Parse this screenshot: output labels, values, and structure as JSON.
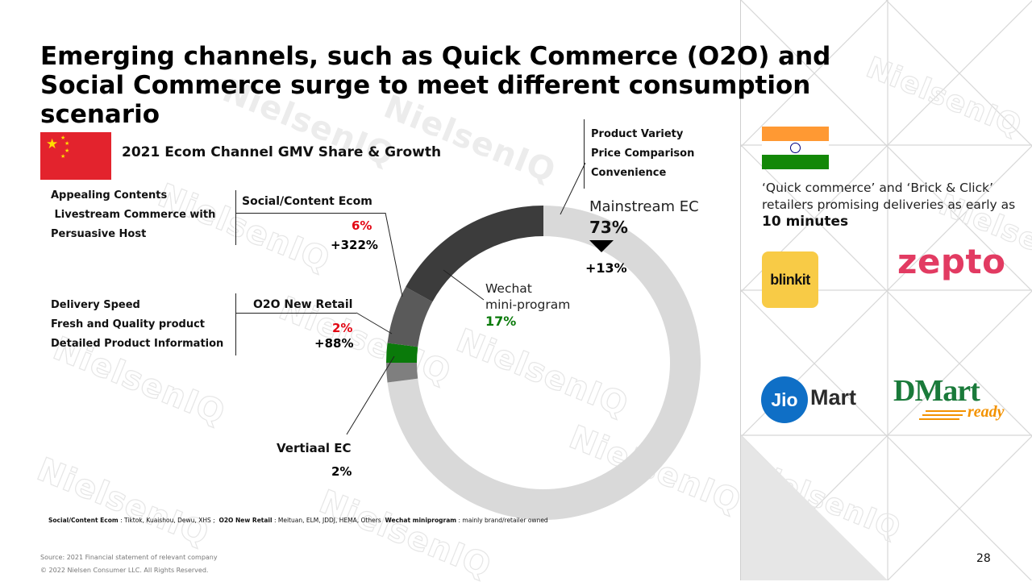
{
  "title": "Emerging channels, such as Quick Commerce (O2O) and Social Commerce surge to meet different consumption scenario",
  "watermark": "NielsenIQ",
  "chart_title": "2021 Ecom Channel GMV Share & Growth",
  "left_labels": {
    "social": [
      "Appealing Contents",
      " Livestream Commerce with",
      "Persuasive Host"
    ],
    "o2o": [
      "Delivery Speed",
      "Fresh and Quality product",
      "Detailed Product Information"
    ]
  },
  "segments": {
    "social": {
      "name": "Social/Content Ecom",
      "share": "6%",
      "growth": "+322%"
    },
    "o2o": {
      "name": "O2O New Retail",
      "share": "2%",
      "growth": "+88%"
    },
    "vertical": {
      "name": "Vertiaal EC",
      "share": "2%"
    },
    "wechat": {
      "name_line1": "Wechat",
      "name_line2": "mini-program",
      "share": "17%"
    },
    "mainstream": {
      "name": "Mainstream EC",
      "share": "73%",
      "growth": "+13%",
      "drivers": [
        "Product Variety",
        "Price Comparison",
        "Convenience"
      ]
    }
  },
  "chart_data": {
    "type": "pie",
    "title": "2021 Ecom Channel GMV Share & Growth",
    "categories": [
      "Mainstream EC",
      "Vertiaal EC",
      "O2O New Retail",
      "Social/Content Ecom",
      "Wechat mini-program"
    ],
    "values": [
      73,
      2,
      2,
      6,
      17
    ],
    "growth": [
      "+13%",
      "",
      "+88%",
      "+322%",
      ""
    ],
    "colors": [
      "#d9d9d9",
      "#7f7f7f",
      "#0a7a0a",
      "#5a5a5a",
      "#3c3c3c"
    ],
    "donut": true
  },
  "footnote": {
    "social_label": "Social/Content Ecom",
    "social_text": ": Tiktok, Kuaishou, Dewu, XHS ;",
    "o2o_label": "O2O New Retail",
    "o2o_text": ": Meituan, ELM, JDDJ, HEMA, Others",
    "wechat_label": "Wechat miniprogram",
    "wechat_text": ": mainly brand/retailer owned"
  },
  "source": "Source: 2021 Financial statement  of relevant company",
  "copyright": "© 2022 Nielsen Consumer LLC. All Rights Reserved.",
  "page_number": "28",
  "india": {
    "text_part1": "‘Quick commerce’ and ‘Brick & Click’ retailers  promising deliveries as early as ",
    "text_bold": "10 minutes",
    "logos": {
      "blinkit": "blinkit",
      "zepto": "zepto",
      "jiomart_jio": "Jio",
      "jiomart_mart": "Mart",
      "dmart": "DMart",
      "dmart_ready": "ready"
    }
  },
  "colors": {
    "accent_red": "#e30613",
    "wechat_green": "#0a7a0a",
    "china_red": "#e3232d",
    "india_saffron": "#ff9933",
    "india_green": "#138808",
    "blinkit_yellow": "#f8cb46",
    "zepto_pink": "#e23b62",
    "jio_blue": "#0f6fc6",
    "dmart_green": "#1a7a3a",
    "dmart_orange": "#f39200"
  }
}
